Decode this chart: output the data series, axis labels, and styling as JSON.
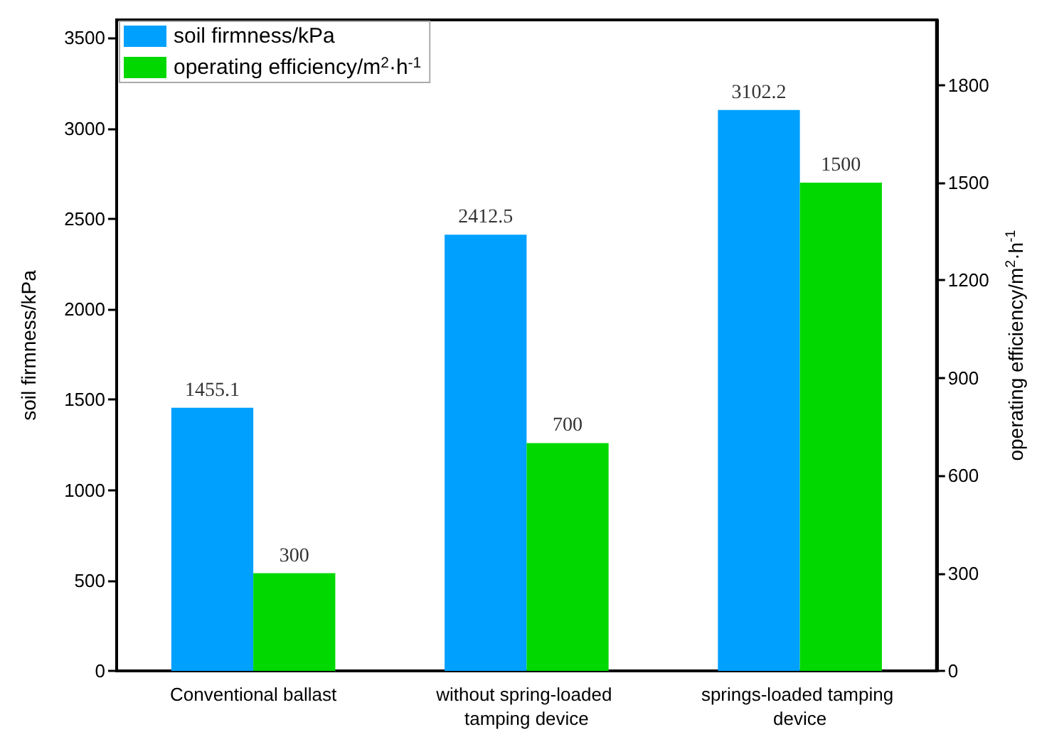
{
  "chart_data": {
    "type": "bar",
    "categories": [
      "Conventional ballast",
      "without spring-loaded tamping device",
      "springs-loaded tamping device"
    ],
    "series": [
      {
        "name": "soil firmness/kPa",
        "color": "#00a0ff",
        "values": [
          1455.1,
          2412.5,
          3102.2
        ]
      },
      {
        "name": "operating efficiency/m$^{2}$·h$^{-1}$",
        "color": "#00d800",
        "values": [
          300,
          700,
          1500
        ],
        "axis": "y2"
      }
    ],
    "ylabel": "soil firmness/kPa",
    "y2label": "operating efficiency/m$^{2}$·h$^{-1}$",
    "ylim": [
      0,
      3600
    ],
    "yticks": [
      0,
      500,
      1000,
      1500,
      2000,
      2500,
      3000,
      3500
    ],
    "y2lim": [
      0,
      2000
    ],
    "y2ticks": [
      0,
      300,
      600,
      900,
      1200,
      1500,
      1800
    ],
    "data_labels": true,
    "legend": "top left",
    "grid": false
  }
}
